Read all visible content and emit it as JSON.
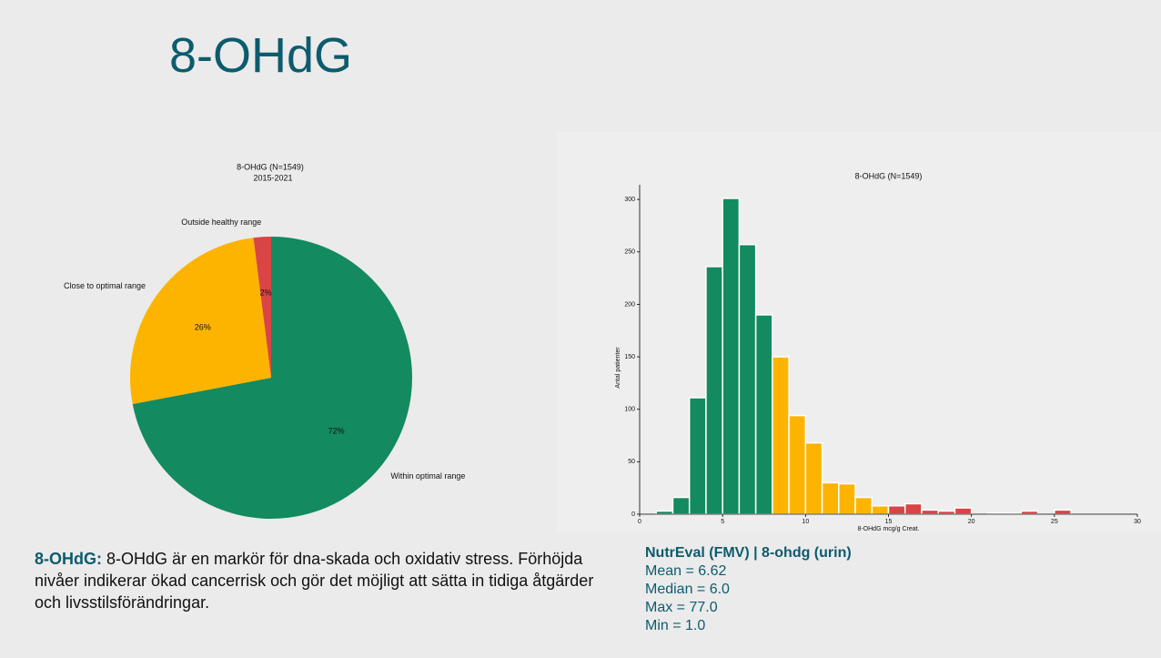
{
  "page_title": "8-OHdG",
  "chart_data": [
    {
      "type": "pie",
      "title": "8-OHdG (N=1549)",
      "subtitle": "2015-2021",
      "categories": [
        "Within optimal range",
        "Close to optimal range",
        "Outside healthy range"
      ],
      "values": [
        72,
        26,
        2
      ],
      "value_labels": [
        "72%",
        "26%",
        "2%"
      ],
      "colors": [
        "#138a60",
        "#fdb400",
        "#d94545"
      ]
    },
    {
      "type": "histogram",
      "title": "8-OHdG (N=1549)",
      "x_label": "8-OHdG mcg/g Creat.",
      "y_label": "Antal patienter",
      "bins": [
        1,
        2,
        3,
        4,
        5,
        6,
        7,
        8,
        9,
        10,
        11,
        12,
        13,
        14,
        15,
        16,
        17,
        18,
        19,
        20,
        21,
        22,
        23,
        24,
        25,
        26
      ],
      "values": [
        3,
        16,
        111,
        236,
        301,
        257,
        190,
        150,
        94,
        68,
        30,
        29,
        16,
        8,
        8,
        10,
        4,
        3,
        6,
        0,
        1,
        1,
        3,
        0,
        4
      ],
      "colors": [
        "#138a60",
        "#138a60",
        "#138a60",
        "#138a60",
        "#138a60",
        "#138a60",
        "#138a60",
        "#fdb400",
        "#fdb400",
        "#fdb400",
        "#fdb400",
        "#fdb400",
        "#fdb400",
        "#fdb400",
        "#d94545",
        "#d94545",
        "#d94545",
        "#d94545",
        "#d94545",
        "#d94545",
        "#d94545",
        "#d94545",
        "#d94545",
        "#d94545",
        "#d94545"
      ],
      "xlim": [
        0,
        30
      ],
      "xticks": [
        0,
        5,
        10,
        15,
        20,
        25,
        30
      ],
      "ylim": [
        0,
        314
      ],
      "yticks": [
        0,
        50,
        100,
        150,
        200,
        250,
        300
      ]
    }
  ],
  "description": {
    "term": "8-OHdG:",
    "text": "8-OHdG är en markör för dna-skada och oxidativ stress. Förhöjda nivåer indikerar ökad cancerrisk och gör det möjligt att sätta in tidiga åtgärder och livsstilsförändringar."
  },
  "stats": {
    "heading": "NutrEval (FMV) | 8-ohdg (urin)",
    "lines": [
      "Mean = 6.62",
      "Median = 6.0",
      "Max = 77.0",
      "Min = 1.0"
    ]
  }
}
